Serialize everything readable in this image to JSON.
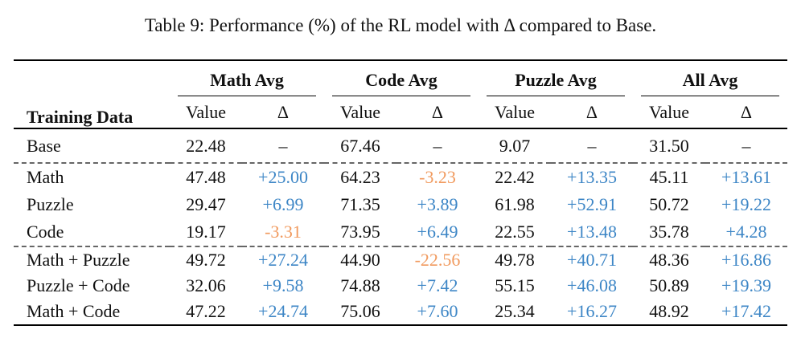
{
  "caption": "Table 9: Performance (%) of the RL model with Δ compared to Base.",
  "colors": {
    "positive_delta": "#3d86c6",
    "negative_delta": "#f19a5e",
    "text": "#111111",
    "rule": "#000000"
  },
  "table": {
    "row_header": "Training Data",
    "groups": [
      {
        "label": "Math Avg"
      },
      {
        "label": "Code Avg"
      },
      {
        "label": "Puzzle Avg"
      },
      {
        "label": "All Avg"
      }
    ],
    "subheaders": {
      "value": "Value",
      "delta": "Δ"
    },
    "rows": [
      {
        "label": "Base",
        "cells": [
          "22.48",
          "–",
          "67.46",
          "–",
          "9.07",
          "–",
          "31.50",
          "–"
        ]
      },
      {
        "label": "Math",
        "cells": [
          "47.48",
          "+25.00",
          "64.23",
          "-3.23",
          "22.42",
          "+13.35",
          "45.11",
          "+13.61"
        ]
      },
      {
        "label": "Puzzle",
        "cells": [
          "29.47",
          "+6.99",
          "71.35",
          "+3.89",
          "61.98",
          "+52.91",
          "50.72",
          "+19.22"
        ]
      },
      {
        "label": "Code",
        "cells": [
          "19.17",
          "-3.31",
          "73.95",
          "+6.49",
          "22.55",
          "+13.48",
          "35.78",
          "+4.28"
        ]
      },
      {
        "label": "Math + Puzzle",
        "cells": [
          "49.72",
          "+27.24",
          "44.90",
          "-22.56",
          "49.78",
          "+40.71",
          "48.36",
          "+16.86"
        ]
      },
      {
        "label": "Puzzle + Code",
        "cells": [
          "32.06",
          "+9.58",
          "74.88",
          "+7.42",
          "55.15",
          "+46.08",
          "50.89",
          "+19.39"
        ]
      },
      {
        "label": "Math + Code",
        "cells": [
          "47.22",
          "+24.74",
          "75.06",
          "+7.60",
          "25.34",
          "+16.27",
          "48.92",
          "+17.42"
        ]
      }
    ]
  }
}
